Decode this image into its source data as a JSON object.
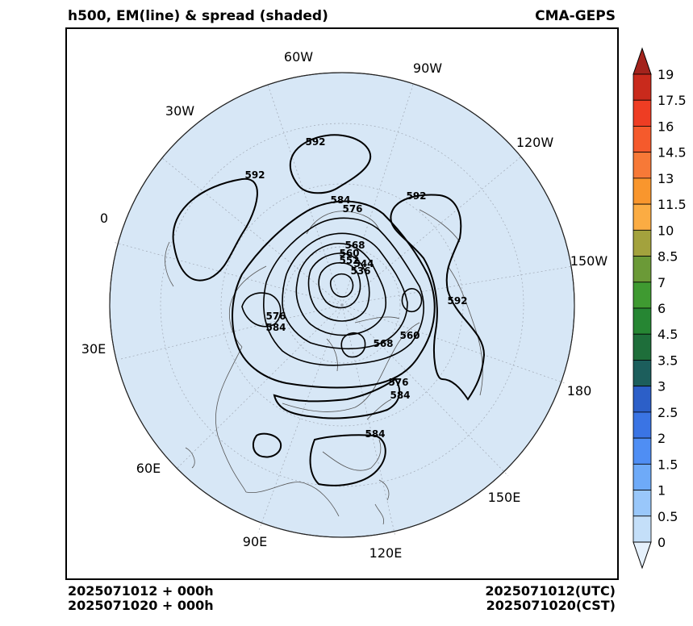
{
  "header": {
    "title": "h500, EM(line) & spread (shaded)",
    "model": "CMA-GEPS"
  },
  "footer": {
    "left_line1": "2025071012 + 000h",
    "left_line2": "2025071020 + 000h",
    "right_line1": "2025071012(UTC)",
    "right_line2": "2025071020(CST)"
  },
  "map": {
    "projection": "north polar stereographic",
    "background_color": "#d7e7f6",
    "longitude_labels": [
      "60W",
      "90W",
      "30W",
      "120W",
      "0",
      "150W",
      "30E",
      "180",
      "60E",
      "150E",
      "90E",
      "120E"
    ],
    "contour_labels": [
      "592",
      "592",
      "584",
      "576",
      "592",
      "568",
      "560",
      "552",
      "544",
      "536",
      "592",
      "576",
      "584",
      "568",
      "560",
      "576",
      "584",
      "584"
    ]
  },
  "colorbar": {
    "labels": [
      "19",
      "17.5",
      "16",
      "14.5",
      "13",
      "11.5",
      "10",
      "8.5",
      "7",
      "6",
      "4.5",
      "3.5",
      "3",
      "2.5",
      "2",
      "1.5",
      "1",
      "0.5",
      "0"
    ],
    "colors": [
      "#a3231c",
      "#c92a1c",
      "#ee3d23",
      "#f55a2c",
      "#f77937",
      "#f9962d",
      "#fbac43",
      "#a3a23d",
      "#6b9a37",
      "#3f9a31",
      "#268633",
      "#1e6e3a",
      "#1c5e5c",
      "#2c5fc8",
      "#3a74e4",
      "#4f8ef4",
      "#6eaaf8",
      "#99c7fa",
      "#c4dff9",
      "#e6f1fc"
    ]
  }
}
